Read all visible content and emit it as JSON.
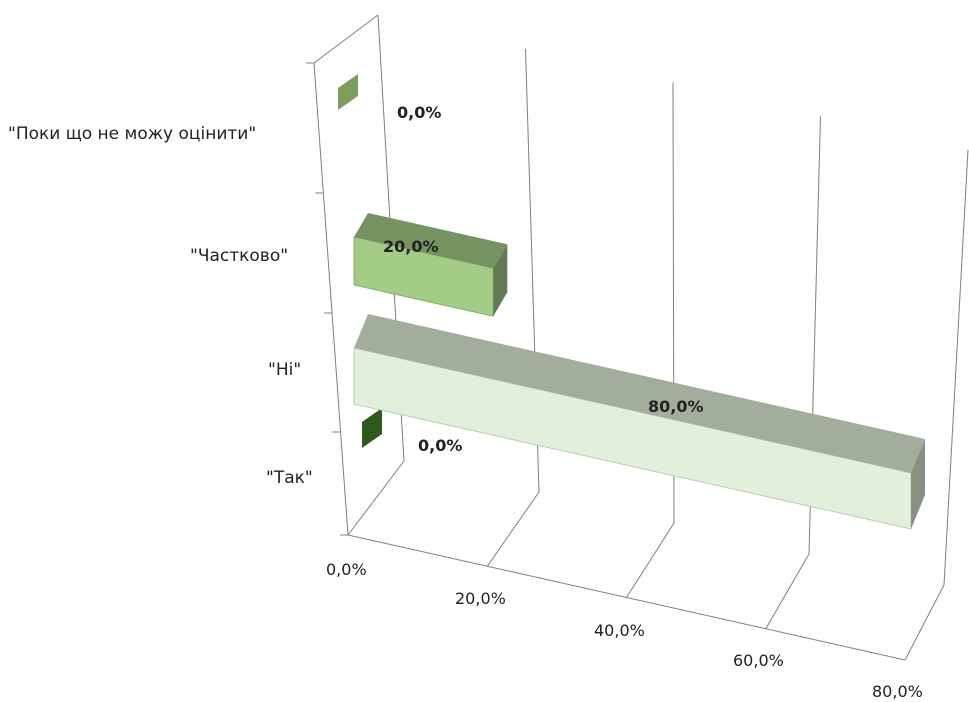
{
  "chart_data": {
    "type": "bar",
    "orientation": "horizontal",
    "style": "3d",
    "categories": [
      "\"Так\"",
      "\"Ні\"",
      "\"Частково\"",
      "\"Поки що не можу оцінити\""
    ],
    "values": [
      0.0,
      80.0,
      20.0,
      0.0
    ],
    "value_labels": [
      "0,0%",
      "80,0%",
      "20,0%",
      "0,0%"
    ],
    "bar_colors": [
      "#2f5a1e",
      "#e2f0d9",
      "#a3cc87",
      "#7a9e5e"
    ],
    "x_ticks": [
      "0,0%",
      "20,0%",
      "40,0%",
      "60,0%",
      "80,0%"
    ],
    "xlim": [
      0,
      80
    ],
    "unit": "%",
    "grid": true,
    "legend": "none"
  }
}
